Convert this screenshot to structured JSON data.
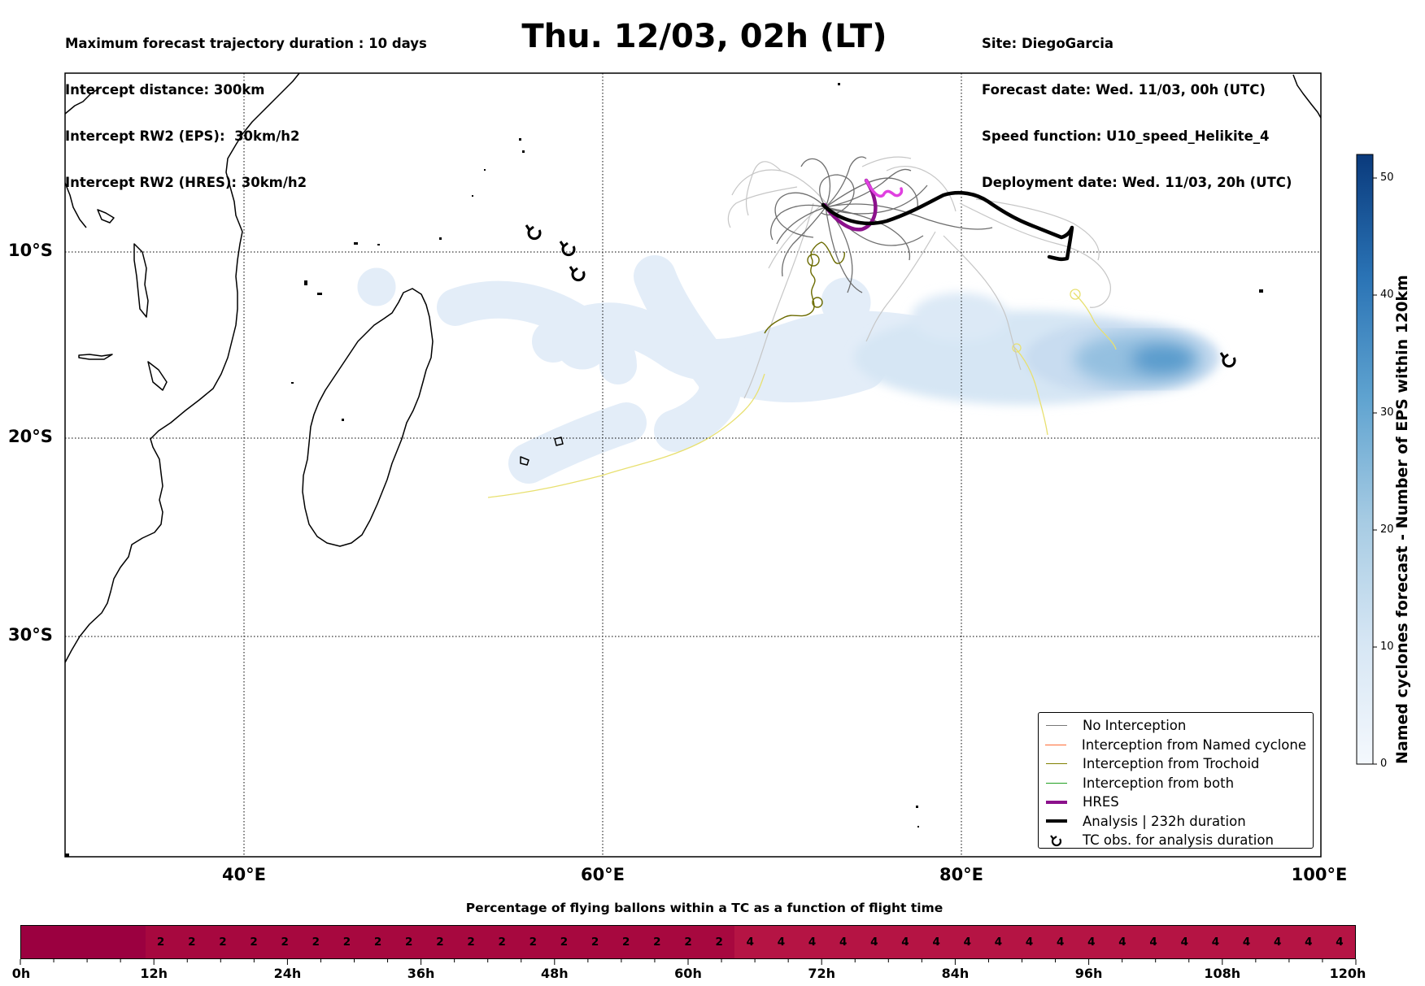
{
  "header": {
    "left_lines": [
      "Maximum forecast trajectory duration : 10 days",
      "Intercept distance: 300km",
      "Intercept RW2 (EPS):  30km/h2",
      "Intercept RW2 (HRES): 30km/h2"
    ],
    "title": "Thu. 12/03, 02h (LT)",
    "right_lines": [
      "Site: DiegoGarcia",
      "Forecast date: Wed. 11/03, 00h (UTC)",
      "Speed function: U10_speed_Helikite_4",
      "Deployment date: Wed. 11/03, 20h (UTC)"
    ]
  },
  "map": {
    "lon_labels": [
      "40°E",
      "60°E",
      "80°E",
      "100°E"
    ],
    "lat_labels": [
      "10°S",
      "20°S",
      "30°S"
    ],
    "land_color": "#ffffff",
    "ocean_color": "#ffffff",
    "hres_color": "#8b108b",
    "hres_late_color": "#e040e0",
    "analysis_color": "#000000",
    "no_interception_color": "#6e6e6e",
    "trochoid_color": "#6b6b00",
    "yellow_track_color": "#e8e070"
  },
  "legend": {
    "items": [
      {
        "label": "No Interception",
        "color": "#777777",
        "kind": "thin"
      },
      {
        "label": "Interception from Named cyclone",
        "color": "#ff6a33",
        "kind": "thin"
      },
      {
        "label": "Interception from Trochoid",
        "color": "#808000",
        "kind": "thin"
      },
      {
        "label": "Interception from both",
        "color": "#22a022",
        "kind": "thin"
      },
      {
        "label": "HRES",
        "color": "#8b108b",
        "kind": "thick"
      },
      {
        "label": "Analysis | 232h duration",
        "color": "#000000",
        "kind": "thick"
      },
      {
        "label": "TC obs. for analysis duration",
        "color": "#000000",
        "kind": "symbol"
      }
    ]
  },
  "colorbar": {
    "title": "Named cyclones forecast - Number of EPS within 120km",
    "ticks": [
      "0",
      "10",
      "20",
      "30",
      "40",
      "50"
    ],
    "min_color": "#f4f8fd",
    "max_color": "#08306b",
    "max": 52
  },
  "strip": {
    "title": "Percentage of flying ballons within a TC as a function of flight time",
    "hour_labels": [
      "0h",
      "12h",
      "24h",
      "36h",
      "48h",
      "60h",
      "72h",
      "84h",
      "96h",
      "108h",
      "120h"
    ],
    "cells": [
      "",
      "",
      "",
      "",
      "2",
      "2",
      "2",
      "2",
      "2",
      "2",
      "2",
      "2",
      "2",
      "2",
      "2",
      "2",
      "2",
      "2",
      "2",
      "2",
      "2",
      "2",
      "2",
      "4",
      "4",
      "4",
      "4",
      "4",
      "4",
      "4",
      "4",
      "4",
      "4",
      "4",
      "4",
      "4",
      "4",
      "4",
      "4",
      "4",
      "4",
      "4",
      "4"
    ],
    "color_empty": "#9b0040",
    "color_2": "#a7083f",
    "color_4": "#b51444"
  }
}
